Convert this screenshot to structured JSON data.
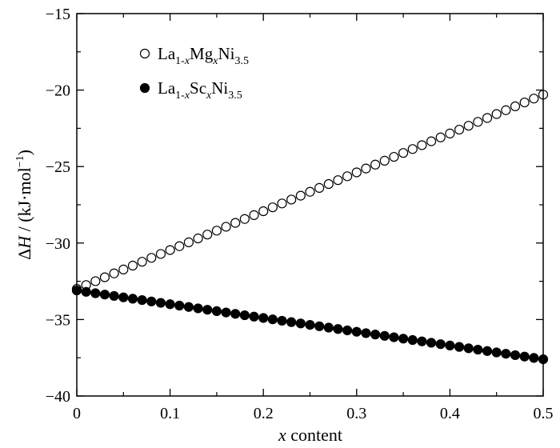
{
  "chart_data": {
    "type": "scatter",
    "xlabel": {
      "var": "x",
      "rest": " content"
    },
    "ylabel": {
      "pre": "Δ",
      "var": "H",
      "unit": " / (kJ·mol",
      "exp": "−1",
      "close": ")"
    },
    "xlim": [
      0,
      0.5
    ],
    "ylim": [
      -40,
      -15
    ],
    "x_ticks": [
      "0",
      "0.1",
      "0.2",
      "0.3",
      "0.4",
      "0.5"
    ],
    "y_ticks": [
      "−15",
      "−20",
      "−25",
      "−30",
      "−35",
      "−40"
    ],
    "grid": false,
    "legend_position": "top-left",
    "series": [
      {
        "name": "La1-xMgxNi3.5",
        "name_parts": {
          "base": "La",
          "sub1": "1-",
          "sub1var": "x",
          "el": "Mg",
          "sub2var": "x",
          "el2": "Ni",
          "sub3": "3.5"
        },
        "marker": "open-circle",
        "x_start": 0,
        "x_step": 0.01,
        "y_start": -33.0,
        "y_end": -20.3,
        "count": 51
      },
      {
        "name": "La1-xScxNi3.5",
        "name_parts": {
          "base": "La",
          "sub1": "1-",
          "sub1var": "x",
          "el": "Sc",
          "sub2var": "x",
          "el2": "Ni",
          "sub3": "3.5"
        },
        "marker": "filled-circle",
        "x_start": 0,
        "x_step": 0.01,
        "y_start": -33.1,
        "y_end": -37.6,
        "count": 51
      }
    ]
  }
}
